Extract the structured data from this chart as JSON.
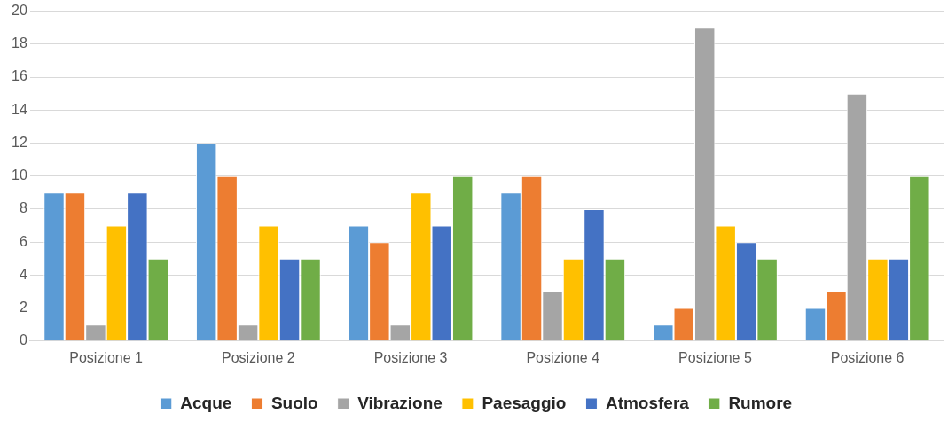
{
  "chart_data": {
    "type": "bar",
    "categories": [
      "Posizione 1",
      "Posizione 2",
      "Posizione 3",
      "Posizione 4",
      "Posizione 5",
      "Posizione 6"
    ],
    "series": [
      {
        "name": "Acque",
        "color": "#5b9bd5",
        "values": [
          9,
          12,
          7,
          9,
          1,
          2
        ]
      },
      {
        "name": "Suolo",
        "color": "#ed7d31",
        "values": [
          9,
          10,
          6,
          10,
          2,
          3
        ]
      },
      {
        "name": "Vibrazione",
        "color": "#a5a5a5",
        "values": [
          1,
          1,
          1,
          3,
          19,
          15
        ]
      },
      {
        "name": "Paesaggio",
        "color": "#ffc000",
        "values": [
          7,
          7,
          9,
          5,
          7,
          5
        ]
      },
      {
        "name": "Atmosfera",
        "color": "#4472c4",
        "values": [
          9,
          5,
          7,
          8,
          6,
          5
        ]
      },
      {
        "name": "Rumore",
        "color": "#70ad47",
        "values": [
          5,
          5,
          10,
          5,
          5,
          10
        ]
      }
    ],
    "ylim": [
      0,
      20
    ],
    "yticks": [
      0,
      2,
      4,
      6,
      8,
      10,
      12,
      14,
      16,
      18,
      20
    ],
    "grid": "y",
    "legend": "bottom"
  }
}
